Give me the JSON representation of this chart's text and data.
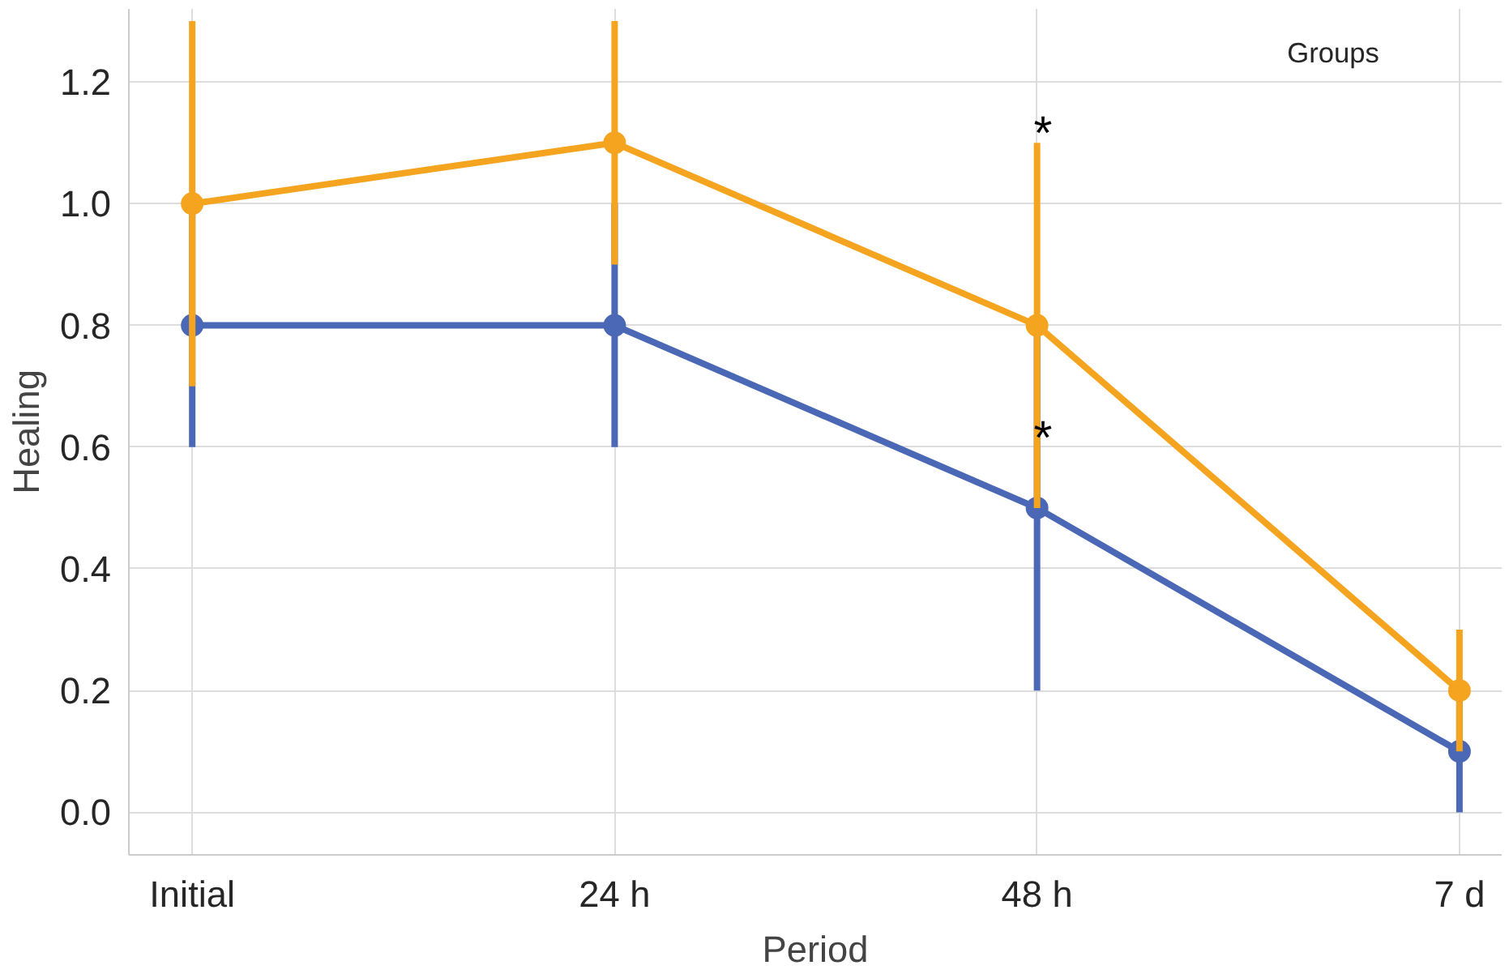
{
  "chart_data": {
    "type": "line",
    "xlabel": "Period",
    "ylabel": "Healing",
    "legend_title": "Groups",
    "categories": [
      "Initial",
      "24 h",
      "48 h",
      "7 d"
    ],
    "series": [
      {
        "color": "#4a68b5",
        "values": [
          0.8,
          0.8,
          0.5,
          0.1
        ],
        "errors": [
          0.2,
          0.2,
          0.3,
          0.1
        ]
      },
      {
        "color": "#f5a41f",
        "values": [
          1.0,
          1.1,
          0.8,
          0.2
        ],
        "errors": [
          0.3,
          0.2,
          0.3,
          0.1
        ]
      }
    ],
    "annotations": [
      "*",
      "*"
    ],
    "ylim": [
      -0.07,
      1.32
    ],
    "yticks": [
      {
        "value": 0,
        "label": "0.0"
      },
      0.2,
      0.4,
      0.6,
      0.8,
      {
        "value": 1,
        "label": "1.0"
      },
      1.2
    ],
    "grid": true,
    "marker": "circle",
    "line_style": "solid"
  }
}
